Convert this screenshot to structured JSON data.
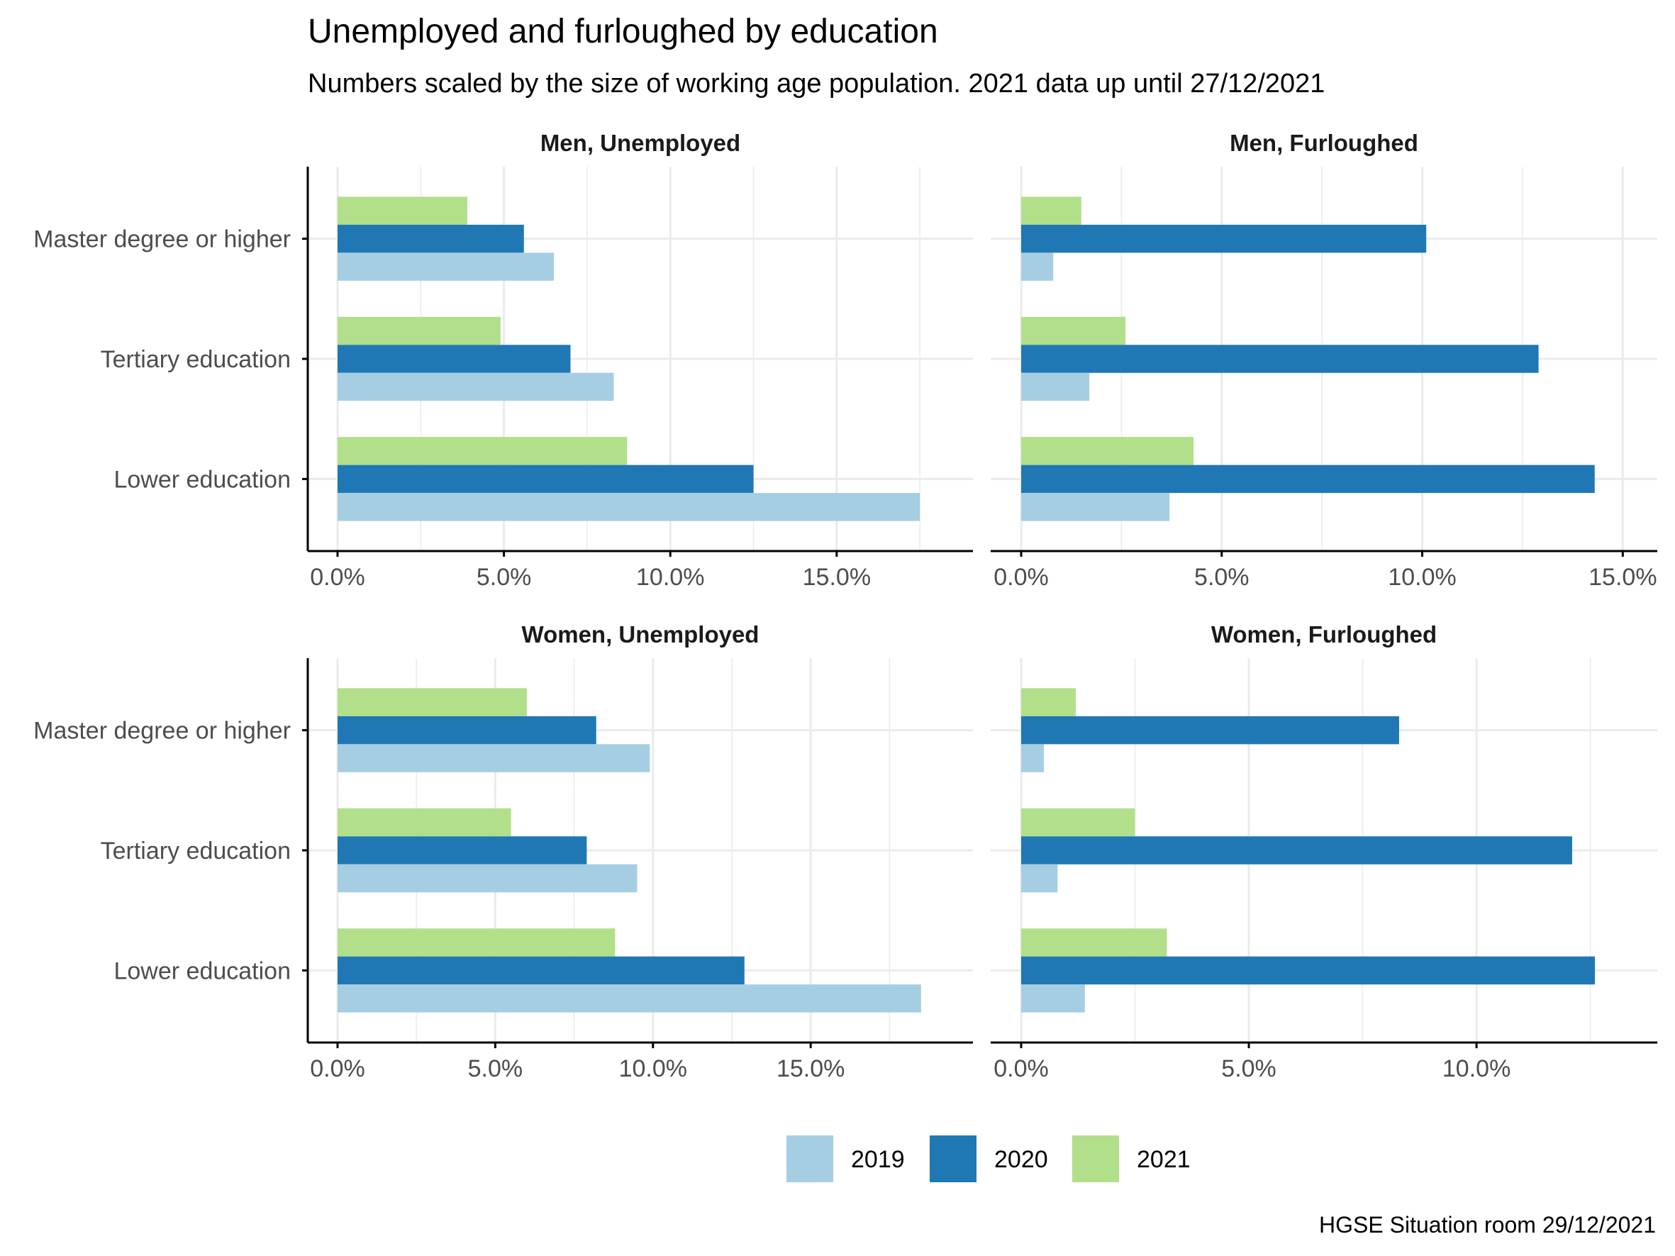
{
  "title": "Unemployed and furloughed by education",
  "subtitle": "Numbers scaled by the size of working age population. 2021 data up until 27/12/2021",
  "caption": "HGSE Situation room 29/12/2021",
  "colors": {
    "2019": "#a6cee3",
    "2020": "#1f78b4",
    "2021": "#b2df8a",
    "grid": "#ebebeb",
    "axis": "#000000"
  },
  "legend": [
    {
      "label": "2019",
      "color": "#a6cee3"
    },
    {
      "label": "2020",
      "color": "#1f78b4"
    },
    {
      "label": "2021",
      "color": "#b2df8a"
    }
  ],
  "chart_data": {
    "type": "bar",
    "orientation": "horizontal",
    "title": "Unemployed and furloughed by education",
    "subtitle": "Numbers scaled by the size of working age population. 2021 data up until 27/12/2021",
    "categories": [
      "Master degree or higher",
      "Tertiary education",
      "Lower education"
    ],
    "series_names": [
      "2019",
      "2020",
      "2021"
    ],
    "legend_position": "bottom",
    "grid": true,
    "panels": [
      {
        "name": "Men, Unemployed",
        "xlim": [
          0,
          18.2
        ],
        "xticks": [
          0,
          5,
          10,
          15
        ],
        "xtick_labels": [
          "0.0%",
          "5.0%",
          "10.0%",
          "15.0%"
        ],
        "series": [
          {
            "name": "2019",
            "values": [
              6.5,
              8.3,
              17.5
            ]
          },
          {
            "name": "2020",
            "values": [
              5.6,
              7.0,
              12.5
            ]
          },
          {
            "name": "2021",
            "values": [
              3.9,
              4.9,
              8.7
            ]
          }
        ]
      },
      {
        "name": "Men, Furloughed",
        "xlim": [
          0,
          15.1
        ],
        "xticks": [
          0,
          5,
          10,
          15
        ],
        "xtick_labels": [
          "0.0%",
          "5.0%",
          "10.0%",
          "15.0%"
        ],
        "series": [
          {
            "name": "2019",
            "values": [
              0.8,
              1.7,
              3.7
            ]
          },
          {
            "name": "2020",
            "values": [
              10.1,
              12.9,
              14.3
            ]
          },
          {
            "name": "2021",
            "values": [
              1.5,
              2.6,
              4.3
            ]
          }
        ]
      },
      {
        "name": "Women, Unemployed",
        "xlim": [
          0,
          19.2
        ],
        "xticks": [
          0,
          5,
          10,
          15
        ],
        "xtick_labels": [
          "0.0%",
          "5.0%",
          "10.0%",
          "15.0%"
        ],
        "series": [
          {
            "name": "2019",
            "values": [
              9.9,
              9.5,
              18.5
            ]
          },
          {
            "name": "2020",
            "values": [
              8.2,
              7.9,
              12.9
            ]
          },
          {
            "name": "2021",
            "values": [
              6.0,
              5.5,
              8.8
            ]
          }
        ]
      },
      {
        "name": "Women, Furloughed",
        "xlim": [
          0,
          13.3
        ],
        "xticks": [
          0,
          5,
          10
        ],
        "xtick_labels": [
          "0.0%",
          "5.0%",
          "10.0%"
        ],
        "series": [
          {
            "name": "2019",
            "values": [
              0.5,
              0.8,
              1.4
            ]
          },
          {
            "name": "2020",
            "values": [
              8.3,
              12.1,
              12.6
            ]
          },
          {
            "name": "2021",
            "values": [
              1.2,
              2.5,
              3.2
            ]
          }
        ]
      }
    ]
  }
}
